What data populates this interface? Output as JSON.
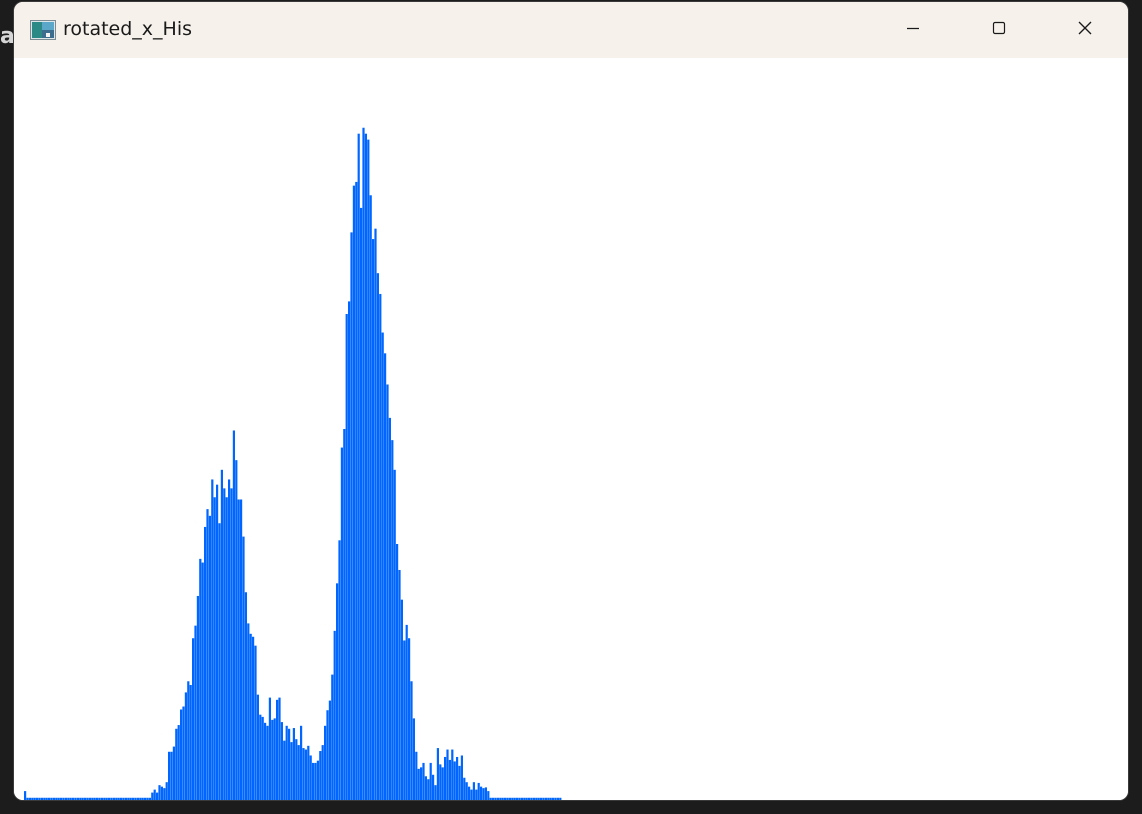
{
  "background": {
    "fragment_text": "ar"
  },
  "window": {
    "title": "rotated_x_His",
    "controls": {
      "minimize": "minimize-icon",
      "maximize": "maximize-icon",
      "close": "close-icon"
    }
  },
  "colors": {
    "bar": "#0066ff",
    "titlebar": "#f6f1ea",
    "plot_background": "#ffffff"
  },
  "chart_data": {
    "type": "bar",
    "bins": 256,
    "ylim": [
      0,
      1
    ],
    "values": [
      0.012,
      0.003,
      0.003,
      0.003,
      0.003,
      0.003,
      0.003,
      0.003,
      0.003,
      0.003,
      0.003,
      0.003,
      0.003,
      0.003,
      0.003,
      0.003,
      0.003,
      0.003,
      0.003,
      0.003,
      0.003,
      0.003,
      0.003,
      0.003,
      0.003,
      0.003,
      0.003,
      0.003,
      0.003,
      0.003,
      0.003,
      0.003,
      0.003,
      0.003,
      0.003,
      0.003,
      0.003,
      0.003,
      0.003,
      0.003,
      0.003,
      0.003,
      0.003,
      0.003,
      0.003,
      0.003,
      0.003,
      0.003,
      0.003,
      0.003,
      0.003,
      0.003,
      0.003,
      0.01,
      0.014,
      0.01,
      0.02,
      0.018,
      0.016,
      0.024,
      0.065,
      0.065,
      0.072,
      0.096,
      0.101,
      0.122,
      0.126,
      0.145,
      0.16,
      0.155,
      0.218,
      0.235,
      0.275,
      0.325,
      0.32,
      0.368,
      0.392,
      0.383,
      0.432,
      0.408,
      0.425,
      0.373,
      0.445,
      0.42,
      0.408,
      0.432,
      0.42,
      0.498,
      0.458,
      0.405,
      0.405,
      0.355,
      0.28,
      0.238,
      0.224,
      0.22,
      0.208,
      0.142,
      0.115,
      0.112,
      0.104,
      0.1,
      0.138,
      0.108,
      0.11,
      0.135,
      0.138,
      0.105,
      0.08,
      0.1,
      0.096,
      0.078,
      0.097,
      0.082,
      0.074,
      0.1,
      0.07,
      0.068,
      0.073,
      0.06,
      0.05,
      0.05,
      0.053,
      0.066,
      0.074,
      0.1,
      0.121,
      0.134,
      0.169,
      0.228,
      0.292,
      0.35,
      0.475,
      0.5,
      0.655,
      0.672,
      0.765,
      0.828,
      0.833,
      0.898,
      0.798,
      0.906,
      0.898,
      0.89,
      0.815,
      0.756,
      0.77,
      0.71,
      0.682,
      0.63,
      0.602,
      0.56,
      0.515,
      0.485,
      0.445,
      0.345,
      0.31,
      0.27,
      0.215,
      0.236,
      0.218,
      0.16,
      0.11,
      0.065,
      0.042,
      0.044,
      0.05,
      0.032,
      0.028,
      0.05,
      0.034,
      0.02,
      0.07,
      0.048,
      0.044,
      0.058,
      0.068,
      0.054,
      0.068,
      0.052,
      0.058,
      0.046,
      0.06,
      0.03,
      0.024,
      0.018,
      0.014,
      0.024,
      0.014,
      0.023,
      0.018,
      0.016,
      0.017,
      0.012,
      0.003,
      0.003,
      0.003,
      0.003,
      0.003,
      0.003,
      0.003,
      0.003,
      0.003,
      0.003,
      0.003,
      0.003,
      0.003,
      0.003,
      0.003,
      0.003,
      0.003,
      0.003,
      0.003,
      0.003,
      0.003,
      0.003,
      0.003,
      0.003,
      0.003,
      0.003,
      0.003,
      0.003,
      0.003,
      0.003,
      0,
      0,
      0,
      0,
      0,
      0,
      0,
      0,
      0,
      0,
      0,
      0,
      0,
      0,
      0,
      0,
      0,
      0,
      0,
      0,
      0,
      0,
      0,
      0,
      0,
      0,
      0,
      0,
      0,
      0,
      0,
      0
    ]
  }
}
